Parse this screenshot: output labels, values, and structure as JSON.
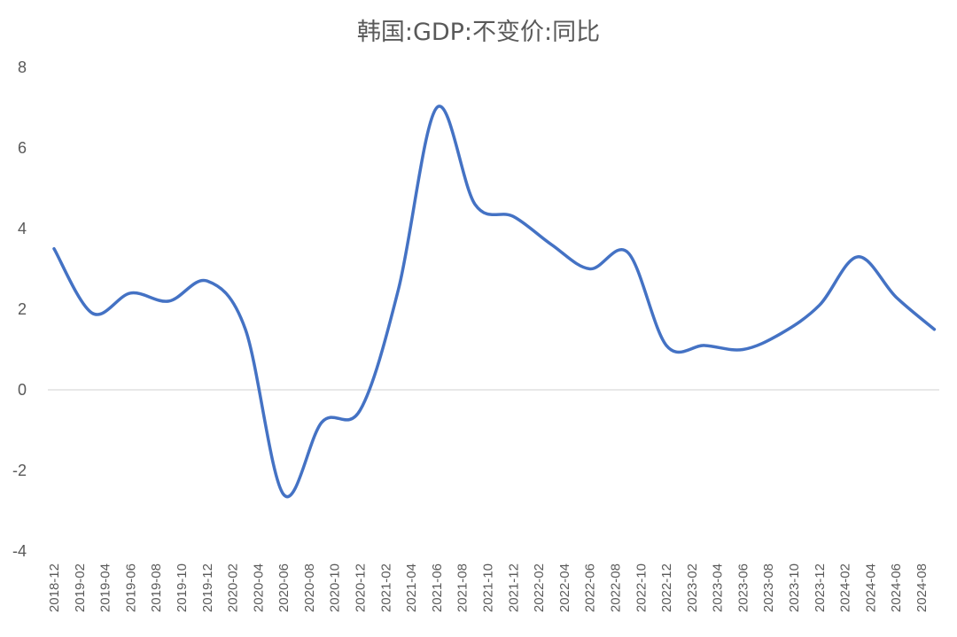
{
  "chart_data": {
    "type": "line",
    "title": "韩国:GDP:不变价:同比",
    "xlabel": "",
    "ylabel": "",
    "ylim": [
      -4,
      8
    ],
    "yticks": [
      8,
      6,
      4,
      2,
      0,
      -2,
      -4
    ],
    "grid": false,
    "legend": "none",
    "line_color": "#4472C4",
    "categories": [
      "2018-12",
      "2019-02",
      "2019-04",
      "2019-06",
      "2019-08",
      "2019-10",
      "2019-12",
      "2020-02",
      "2020-04",
      "2020-06",
      "2020-08",
      "2020-10",
      "2020-12",
      "2021-02",
      "2021-04",
      "2021-06",
      "2021-08",
      "2021-10",
      "2021-12",
      "2022-02",
      "2022-04",
      "2022-06",
      "2022-08",
      "2022-10",
      "2022-12",
      "2023-02",
      "2023-04",
      "2023-06",
      "2023-08",
      "2023-10",
      "2023-12",
      "2024-02",
      "2024-04",
      "2024-06",
      "2024-08"
    ],
    "series": [
      {
        "points": [
          {
            "x": "2018-12",
            "y": 3.5
          },
          {
            "x": "2019-03",
            "y": 1.9
          },
          {
            "x": "2019-06",
            "y": 2.4
          },
          {
            "x": "2019-09",
            "y": 2.2
          },
          {
            "x": "2019-12",
            "y": 2.7
          },
          {
            "x": "2020-03",
            "y": 1.5
          },
          {
            "x": "2020-06",
            "y": -2.6
          },
          {
            "x": "2020-09",
            "y": -0.8
          },
          {
            "x": "2020-12",
            "y": -0.5
          },
          {
            "x": "2021-03",
            "y": 2.5
          },
          {
            "x": "2021-06",
            "y": 7.0
          },
          {
            "x": "2021-09",
            "y": 4.6
          },
          {
            "x": "2021-12",
            "y": 4.3
          },
          {
            "x": "2022-03",
            "y": 3.6
          },
          {
            "x": "2022-06",
            "y": 3.0
          },
          {
            "x": "2022-09",
            "y": 3.4
          },
          {
            "x": "2022-12",
            "y": 1.1
          },
          {
            "x": "2023-03",
            "y": 1.1
          },
          {
            "x": "2023-06",
            "y": 1.0
          },
          {
            "x": "2023-09",
            "y": 1.4
          },
          {
            "x": "2023-12",
            "y": 2.1
          },
          {
            "x": "2024-03",
            "y": 3.3
          },
          {
            "x": "2024-06",
            "y": 2.3
          },
          {
            "x": "2024-09",
            "y": 1.5
          }
        ]
      }
    ]
  }
}
